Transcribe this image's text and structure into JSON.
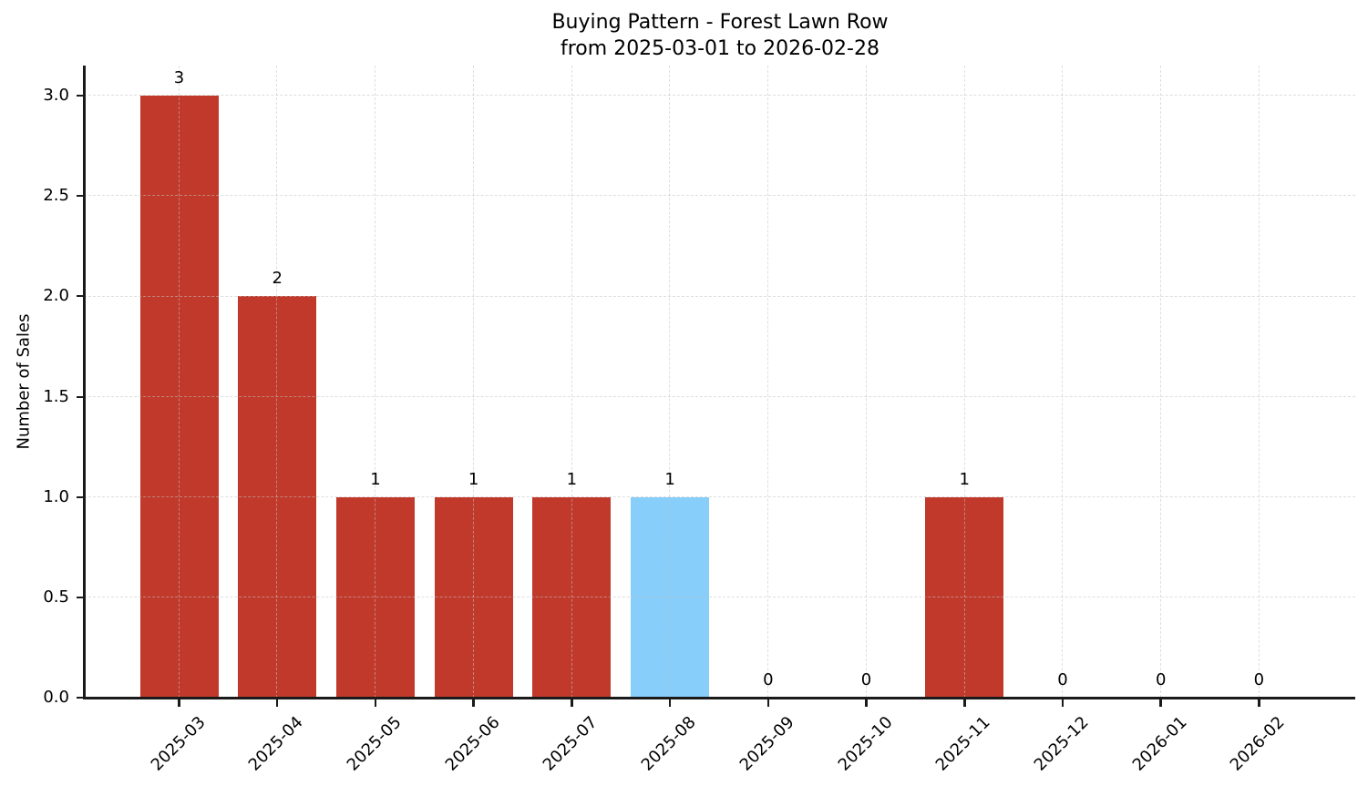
{
  "chart_data": {
    "type": "bar",
    "title": "Buying Pattern - Forest Lawn Row",
    "subtitle": "from 2025-03-01 to 2026-02-28",
    "ylabel": "Number of Sales",
    "xlabel": "",
    "categories": [
      "2025-03",
      "2025-04",
      "2025-05",
      "2025-06",
      "2025-07",
      "2025-08",
      "2025-09",
      "2025-10",
      "2025-11",
      "2025-12",
      "2026-01",
      "2026-02"
    ],
    "values": [
      3,
      2,
      1,
      1,
      1,
      1,
      0,
      0,
      1,
      0,
      0,
      0
    ],
    "bar_value_labels": [
      "3",
      "2",
      "1",
      "1",
      "1",
      "1",
      "0",
      "0",
      "1",
      "0",
      "0",
      "0"
    ],
    "highlight_index": 5,
    "yticks": [
      "0.0",
      "0.5",
      "1.0",
      "1.5",
      "2.0",
      "2.5",
      "3.0"
    ],
    "ylim": [
      0,
      3.15
    ],
    "grid": true,
    "legend_position": "none",
    "colors": {
      "bar_default": "#C0392B",
      "bar_highlight": "#87CEFA",
      "axis": "#1A1A1A",
      "grid": "#DCDCDC",
      "text": "#000000",
      "background": "#FFFFFF"
    }
  }
}
